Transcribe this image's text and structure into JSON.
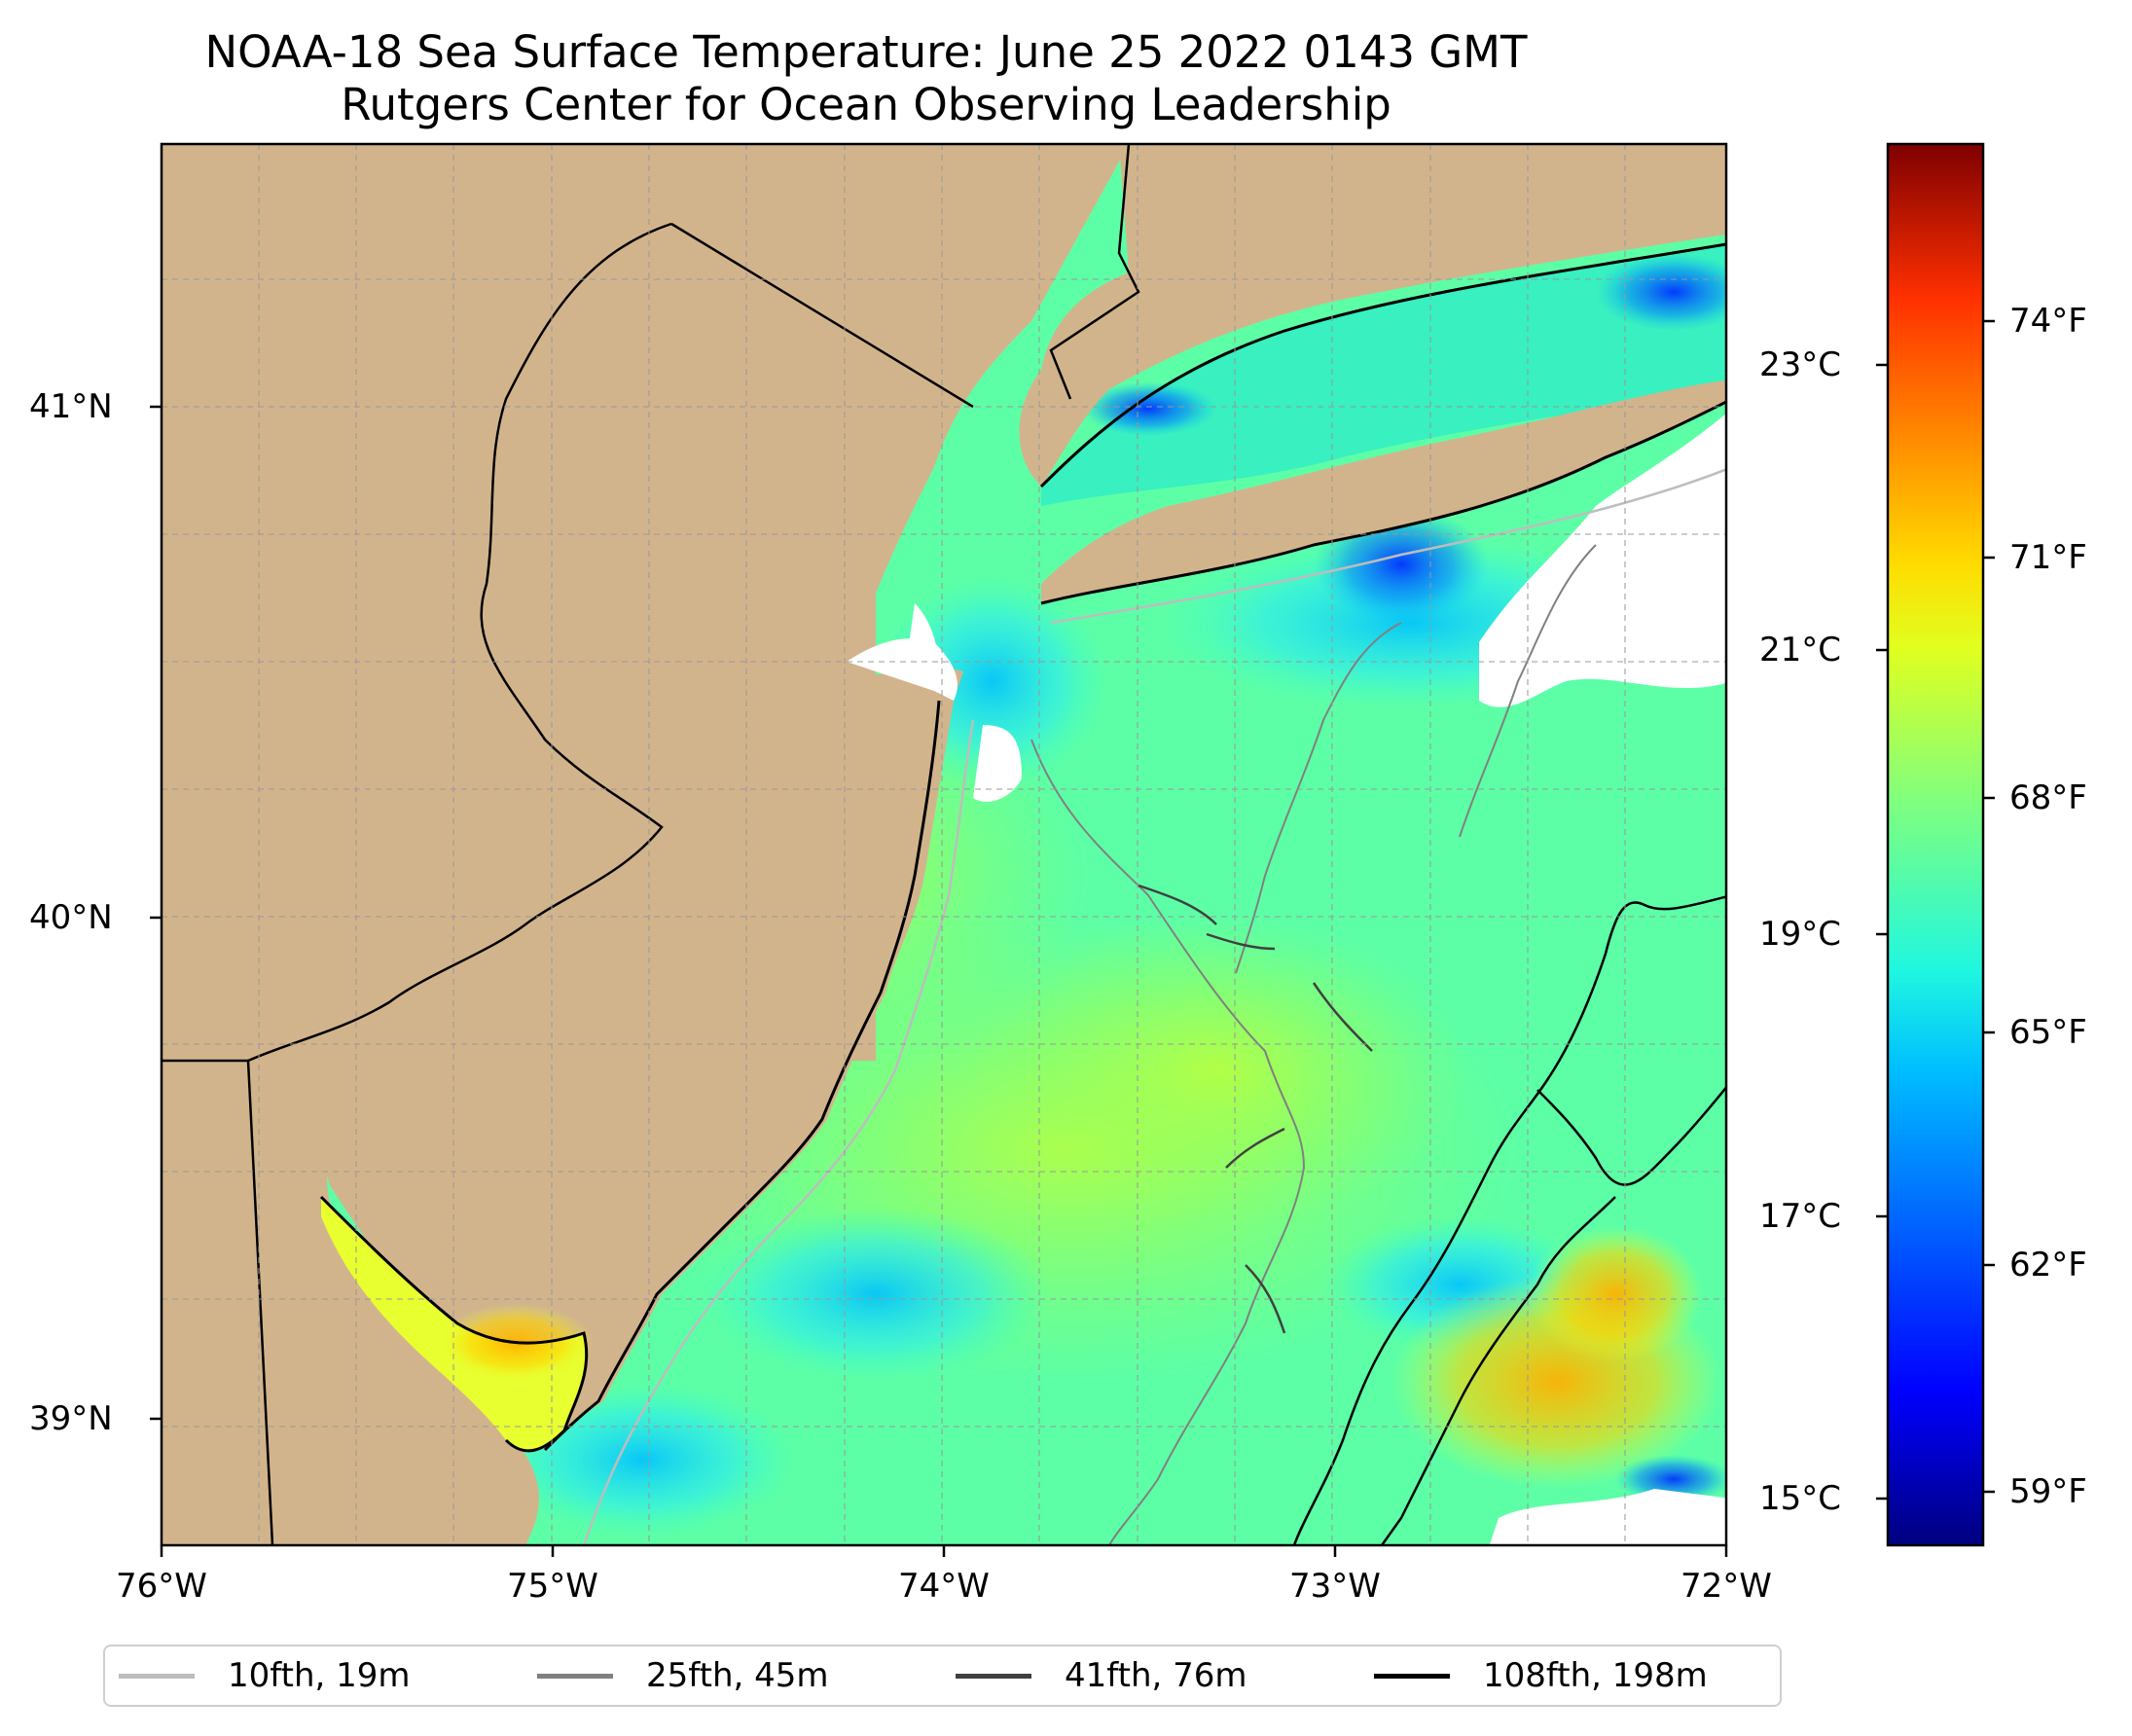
{
  "title": {
    "line1": "NOAA-18 Sea Surface Temperature: June 25 2022 0143 GMT",
    "line2": "Rutgers Center for Ocean Observing Leadership"
  },
  "map": {
    "lon_range": [
      -76,
      -72
    ],
    "lat_range": [
      38.7,
      41.52
    ],
    "lon_ticks": [
      {
        "value": -76,
        "label": "76°W"
      },
      {
        "value": -75,
        "label": "75°W"
      },
      {
        "value": -74,
        "label": "74°W"
      },
      {
        "value": -73,
        "label": "73°W"
      },
      {
        "value": -72,
        "label": "72°W"
      }
    ],
    "lat_ticks": [
      {
        "value": 41,
        "label": "41°N"
      },
      {
        "value": 40,
        "label": "40°N"
      },
      {
        "value": 39,
        "label": "39°N"
      }
    ],
    "gridlines": true,
    "land_color": "#d2b48c",
    "no_data_color": "#ffffff"
  },
  "colorbar": {
    "colormap": "jet",
    "celsius_ticks": [
      {
        "value": 15,
        "label": "15°C"
      },
      {
        "value": 17,
        "label": "17°C"
      },
      {
        "value": 19,
        "label": "19°C"
      },
      {
        "value": 21,
        "label": "21°C"
      },
      {
        "value": 23,
        "label": "23°C"
      }
    ],
    "fahrenheit_ticks": [
      {
        "value": 59,
        "label": "59°F"
      },
      {
        "value": 62,
        "label": "62°F"
      },
      {
        "value": 65,
        "label": "65°F"
      },
      {
        "value": 68,
        "label": "68°F"
      },
      {
        "value": 71,
        "label": "71°F"
      },
      {
        "value": 74,
        "label": "74°F"
      }
    ],
    "range_f": [
      57.5,
      77
    ]
  },
  "legend": {
    "placement": "bottom",
    "items": [
      {
        "label": "10fth, 19m",
        "color": "#bdbdbd"
      },
      {
        "label": "25fth, 45m",
        "color": "#808080"
      },
      {
        "label": "41fth, 76m",
        "color": "#404040"
      },
      {
        "label": "108fth, 198m",
        "color": "#000000"
      }
    ]
  }
}
